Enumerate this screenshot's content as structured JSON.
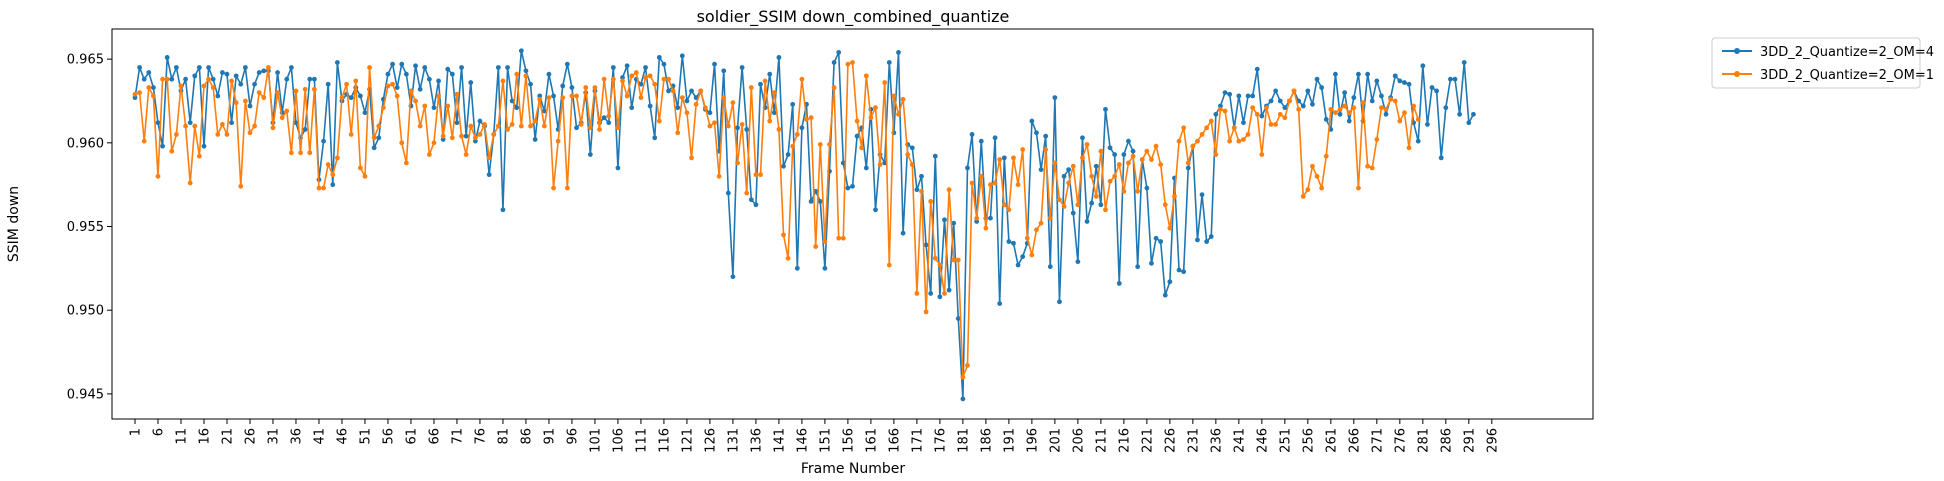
{
  "chart_data": {
    "type": "line",
    "title": "soldier_SSIM down_combined_quantize",
    "xlabel": "Frame Number",
    "ylabel": "SSIM down",
    "xlim": [
      -4,
      318
    ],
    "ylim": [
      0.9435,
      0.9668
    ],
    "x_ticks": [
      1,
      6,
      11,
      16,
      21,
      26,
      31,
      36,
      41,
      46,
      51,
      56,
      61,
      66,
      71,
      76,
      81,
      86,
      91,
      96,
      101,
      106,
      111,
      116,
      121,
      126,
      131,
      136,
      141,
      146,
      151,
      156,
      161,
      166,
      171,
      176,
      181,
      186,
      191,
      196,
      201,
      206,
      211,
      216,
      221,
      226,
      231,
      236,
      241,
      246,
      251,
      256,
      261,
      266,
      271,
      276,
      281,
      286,
      291,
      296
    ],
    "y_ticks": [
      0.945,
      0.95,
      0.955,
      0.96,
      0.965
    ],
    "y_tick_labels": [
      "0.945",
      "0.950",
      "0.955",
      "0.960",
      "0.965"
    ],
    "legend_position": "outside-top-right",
    "grid": false,
    "x_start": 1,
    "series": [
      {
        "name": "3DD_2_Quantize=2_OM=4",
        "color": "#1f77b4",
        "values": [
          0.9627,
          0.9645,
          0.9638,
          0.9642,
          0.9633,
          0.9612,
          0.9598,
          0.9651,
          0.9638,
          0.9645,
          0.9631,
          0.9638,
          0.9612,
          0.964,
          0.9645,
          0.9598,
          0.9645,
          0.9638,
          0.9628,
          0.9642,
          0.9641,
          0.9612,
          0.964,
          0.9635,
          0.9645,
          0.9622,
          0.9635,
          0.9642,
          0.9643,
          0.9643,
          0.9612,
          0.9642,
          0.9618,
          0.9638,
          0.9645,
          0.9612,
          0.9603,
          0.9608,
          0.9638,
          0.9638,
          0.9578,
          0.9601,
          0.9635,
          0.9575,
          0.9648,
          0.9625,
          0.9629,
          0.9627,
          0.9633,
          0.9628,
          0.9618,
          0.9632,
          0.9597,
          0.9603,
          0.9626,
          0.9641,
          0.9647,
          0.9633,
          0.9647,
          0.9641,
          0.9622,
          0.9646,
          0.9632,
          0.9645,
          0.9638,
          0.9621,
          0.9637,
          0.9602,
          0.9644,
          0.9641,
          0.9612,
          0.9645,
          0.9604,
          0.9636,
          0.9601,
          0.9613,
          0.961,
          0.9581,
          0.9605,
          0.9645,
          0.956,
          0.9645,
          0.9625,
          0.9621,
          0.9655,
          0.9643,
          0.9635,
          0.9602,
          0.9628,
          0.9619,
          0.9641,
          0.9628,
          0.9608,
          0.9634,
          0.9647,
          0.9633,
          0.9609,
          0.9612,
          0.963,
          0.9593,
          0.9631,
          0.9612,
          0.9615,
          0.9612,
          0.9645,
          0.9585,
          0.9639,
          0.9646,
          0.9621,
          0.9638,
          0.9635,
          0.9645,
          0.9622,
          0.9603,
          0.9651,
          0.9647,
          0.9631,
          0.9634,
          0.9621,
          0.9652,
          0.9625,
          0.9631,
          0.9627,
          0.9631,
          0.962,
          0.9618,
          0.9647,
          0.9595,
          0.9643,
          0.957,
          0.952,
          0.9609,
          0.9645,
          0.9608,
          0.9566,
          0.9563,
          0.9635,
          0.9621,
          0.9641,
          0.9618,
          0.9651,
          0.9586,
          0.9593,
          0.9623,
          0.9525,
          0.9609,
          0.9623,
          0.9565,
          0.9571,
          0.9565,
          0.9525,
          0.9583,
          0.9648,
          0.9654,
          0.9588,
          0.9573,
          0.9574,
          0.9604,
          0.9609,
          0.9585,
          0.962,
          0.956,
          0.9593,
          0.9588,
          0.9648,
          0.9606,
          0.9654,
          0.9546,
          0.9599,
          0.9597,
          0.9572,
          0.958,
          0.9539,
          0.951,
          0.9592,
          0.9508,
          0.9554,
          0.9512,
          0.9552,
          0.9495,
          0.9447,
          0.9585,
          0.9605,
          0.9553,
          0.9601,
          0.9555,
          0.9555,
          0.9603,
          0.9504,
          0.9591,
          0.9541,
          0.954,
          0.9527,
          0.9532,
          0.954,
          0.9613,
          0.9606,
          0.9584,
          0.9604,
          0.9526,
          0.9627,
          0.9505,
          0.958,
          0.9584,
          0.9558,
          0.9529,
          0.9603,
          0.9553,
          0.9564,
          0.9586,
          0.9563,
          0.962,
          0.9597,
          0.9593,
          0.9516,
          0.9593,
          0.9601,
          0.9595,
          0.9526,
          0.959,
          0.9573,
          0.9528,
          0.9543,
          0.9541,
          0.9509,
          0.9517,
          0.9579,
          0.9524,
          0.9523,
          0.9585,
          0.9598,
          0.9542,
          0.9569,
          0.9541,
          0.9544,
          0.9617,
          0.9622,
          0.963,
          0.9629,
          0.9609,
          0.9628,
          0.9612,
          0.9628,
          0.9628,
          0.9644,
          0.9616,
          0.9622,
          0.9625,
          0.9631,
          0.9625,
          0.9621,
          0.9625,
          0.9631,
          0.9625,
          0.9622,
          0.9631,
          0.9623,
          0.9638,
          0.9633,
          0.9614,
          0.9608,
          0.9641,
          0.9617,
          0.963,
          0.9613,
          0.9627,
          0.9641,
          0.9613,
          0.9641,
          0.9625,
          0.9637,
          0.9628,
          0.9617,
          0.9627,
          0.964,
          0.9637,
          0.9636,
          0.9635,
          0.9612,
          0.9601,
          0.9646,
          0.9611,
          0.9633,
          0.9631,
          0.9591,
          0.9621,
          0.9638,
          0.9638,
          0.9617,
          0.9648,
          0.9612,
          0.9617
        ]
      },
      {
        "name": "3DD_2_Quantize=2_OM=1",
        "color": "#ff7f0e",
        "values": [
          0.9629,
          0.963,
          0.9601,
          0.9633,
          0.9628,
          0.958,
          0.9638,
          0.9638,
          0.9595,
          0.9605,
          0.9634,
          0.961,
          0.9576,
          0.961,
          0.9592,
          0.9634,
          0.9638,
          0.9633,
          0.9605,
          0.9611,
          0.9605,
          0.9637,
          0.9624,
          0.9574,
          0.9625,
          0.9606,
          0.961,
          0.963,
          0.9627,
          0.9645,
          0.9609,
          0.963,
          0.9615,
          0.9619,
          0.9594,
          0.9631,
          0.9594,
          0.9632,
          0.9594,
          0.9632,
          0.9573,
          0.9573,
          0.9587,
          0.9581,
          0.9591,
          0.9627,
          0.9635,
          0.9605,
          0.9637,
          0.9585,
          0.958,
          0.9645,
          0.9603,
          0.961,
          0.9621,
          0.9634,
          0.9635,
          0.9628,
          0.96,
          0.9588,
          0.9631,
          0.9625,
          0.961,
          0.9622,
          0.9593,
          0.96,
          0.9628,
          0.9604,
          0.9622,
          0.9603,
          0.9629,
          0.9604,
          0.9593,
          0.961,
          0.9603,
          0.9605,
          0.9611,
          0.9591,
          0.9605,
          0.961,
          0.9637,
          0.9608,
          0.9611,
          0.9641,
          0.961,
          0.964,
          0.961,
          0.9613,
          0.9626,
          0.961,
          0.9627,
          0.9573,
          0.9601,
          0.9627,
          0.9573,
          0.9628,
          0.9628,
          0.9611,
          0.9633,
          0.9609,
          0.9633,
          0.9608,
          0.9638,
          0.9616,
          0.9638,
          0.9609,
          0.9637,
          0.9628,
          0.964,
          0.9642,
          0.9627,
          0.9639,
          0.964,
          0.9635,
          0.9613,
          0.9638,
          0.9638,
          0.9631,
          0.9606,
          0.9627,
          0.9618,
          0.9591,
          0.9623,
          0.9631,
          0.9621,
          0.961,
          0.9612,
          0.958,
          0.9627,
          0.961,
          0.9624,
          0.9588,
          0.9611,
          0.957,
          0.9633,
          0.9581,
          0.9581,
          0.9637,
          0.9613,
          0.963,
          0.9608,
          0.9545,
          0.9531,
          0.9598,
          0.9605,
          0.9638,
          0.9614,
          0.9615,
          0.9538,
          0.9599,
          0.9541,
          0.9599,
          0.9633,
          0.9543,
          0.9543,
          0.9647,
          0.9648,
          0.9613,
          0.9597,
          0.964,
          0.9615,
          0.9621,
          0.9587,
          0.9636,
          0.9527,
          0.9628,
          0.9617,
          0.9626,
          0.9593,
          0.9587,
          0.951,
          0.9571,
          0.9499,
          0.9565,
          0.9531,
          0.9527,
          0.951,
          0.9572,
          0.953,
          0.953,
          0.946,
          0.9467,
          0.9576,
          0.9555,
          0.958,
          0.9549,
          0.9575,
          0.9576,
          0.959,
          0.9563,
          0.956,
          0.9591,
          0.9575,
          0.9596,
          0.9543,
          0.9533,
          0.9548,
          0.9552,
          0.9596,
          0.9555,
          0.9588,
          0.9566,
          0.9562,
          0.9576,
          0.9586,
          0.9563,
          0.9591,
          0.9599,
          0.958,
          0.9568,
          0.9595,
          0.956,
          0.9577,
          0.958,
          0.9587,
          0.9571,
          0.9588,
          0.9592,
          0.9571,
          0.959,
          0.9595,
          0.959,
          0.9598,
          0.9587,
          0.9563,
          0.9549,
          0.9568,
          0.9601,
          0.9609,
          0.9588,
          0.9598,
          0.9601,
          0.9605,
          0.9609,
          0.9613,
          0.9593,
          0.962,
          0.9619,
          0.9601,
          0.9609,
          0.9601,
          0.9602,
          0.9605,
          0.9621,
          0.9617,
          0.9593,
          0.9621,
          0.9611,
          0.9611,
          0.9617,
          0.9615,
          0.9625,
          0.9631,
          0.962,
          0.9568,
          0.9572,
          0.9586,
          0.958,
          0.9573,
          0.9592,
          0.962,
          0.9618,
          0.962,
          0.9622,
          0.9618,
          0.9621,
          0.9573,
          0.9624,
          0.9586,
          0.9585,
          0.9602,
          0.9621,
          0.962,
          0.9626,
          0.9625,
          0.9613,
          0.9618,
          0.9597,
          0.9622,
          0.9614
        ]
      }
    ]
  }
}
